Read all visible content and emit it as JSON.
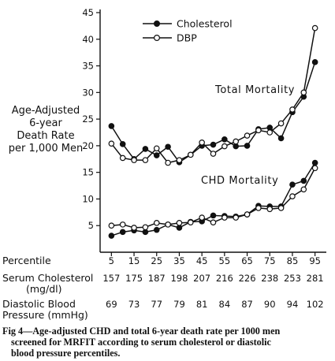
{
  "chart_data": {
    "type": "line",
    "ylabel_lines": [
      "Age-Adjusted",
      "6-year",
      "Death Rate",
      "per 1,000 Men"
    ],
    "ylim": [
      0,
      45
    ],
    "yticks": [
      5,
      10,
      15,
      20,
      25,
      30,
      35,
      40,
      45
    ],
    "x": [
      5,
      10,
      15,
      20,
      25,
      30,
      35,
      40,
      45,
      50,
      55,
      60,
      65,
      70,
      75,
      80,
      85,
      90,
      95
    ],
    "xticks": [
      5,
      15,
      25,
      35,
      45,
      55,
      65,
      75,
      85,
      95
    ],
    "xlim": [
      0,
      100
    ],
    "legend": [
      {
        "label": "Cholesterol",
        "marker": "filled-circle"
      },
      {
        "label": "DBP",
        "marker": "open-circle"
      }
    ],
    "groups": [
      {
        "label": "Total Mortality",
        "series": [
          {
            "name": "Cholesterol",
            "marker": "filled",
            "values": [
              23.7,
              20.3,
              17.5,
              19.4,
              18.2,
              19.8,
              16.9,
              18.3,
              20.0,
              20.2,
              21.2,
              19.9,
              20.0,
              23.1,
              23.4,
              21.4,
              26.3,
              29.2,
              35.7
            ]
          },
          {
            "name": "DBP",
            "marker": "open",
            "values": [
              20.4,
              17.7,
              17.3,
              17.3,
              19.5,
              16.8,
              17.3,
              18.3,
              20.6,
              18.5,
              19.9,
              20.8,
              21.9,
              22.9,
              22.5,
              24.2,
              26.8,
              30.0,
              42.1
            ]
          }
        ]
      },
      {
        "label": "CHD Mortality",
        "series": [
          {
            "name": "Cholesterol",
            "marker": "filled",
            "values": [
              3.1,
              3.8,
              4.1,
              3.8,
              4.2,
              5.2,
              4.6,
              5.7,
              5.8,
              6.9,
              6.8,
              6.7,
              7.1,
              8.7,
              8.6,
              8.6,
              12.7,
              13.4,
              16.8
            ]
          },
          {
            "name": "DBP",
            "marker": "open",
            "values": [
              5.0,
              5.2,
              4.6,
              4.7,
              5.5,
              5.2,
              5.5,
              5.6,
              6.5,
              5.6,
              6.5,
              6.5,
              7.1,
              8.3,
              8.1,
              8.3,
              10.5,
              11.8,
              15.8
            ]
          }
        ]
      }
    ],
    "table": {
      "rows": [
        {
          "label": "Percentile",
          "values": []
        },
        {
          "label": "Serum Cholesterol",
          "label2": "(mg/dl)",
          "values": [
            "157",
            "175",
            "187",
            "198",
            "207",
            "216",
            "226",
            "238",
            "253",
            "281"
          ]
        },
        {
          "label": "Diastolic Blood",
          "label2": "Pressure (mmHg)",
          "values": [
            "69",
            "73",
            "77",
            "79",
            "81",
            "84",
            "87",
            "90",
            "94",
            "102"
          ]
        }
      ]
    }
  },
  "caption": {
    "line1": "Fig 4—Age-adjusted CHD and total 6-year death rate per 1000 men",
    "line2": "screened for MRFIT according to serum cholesterol or diastolic",
    "line3": "blood pressure percentiles."
  }
}
